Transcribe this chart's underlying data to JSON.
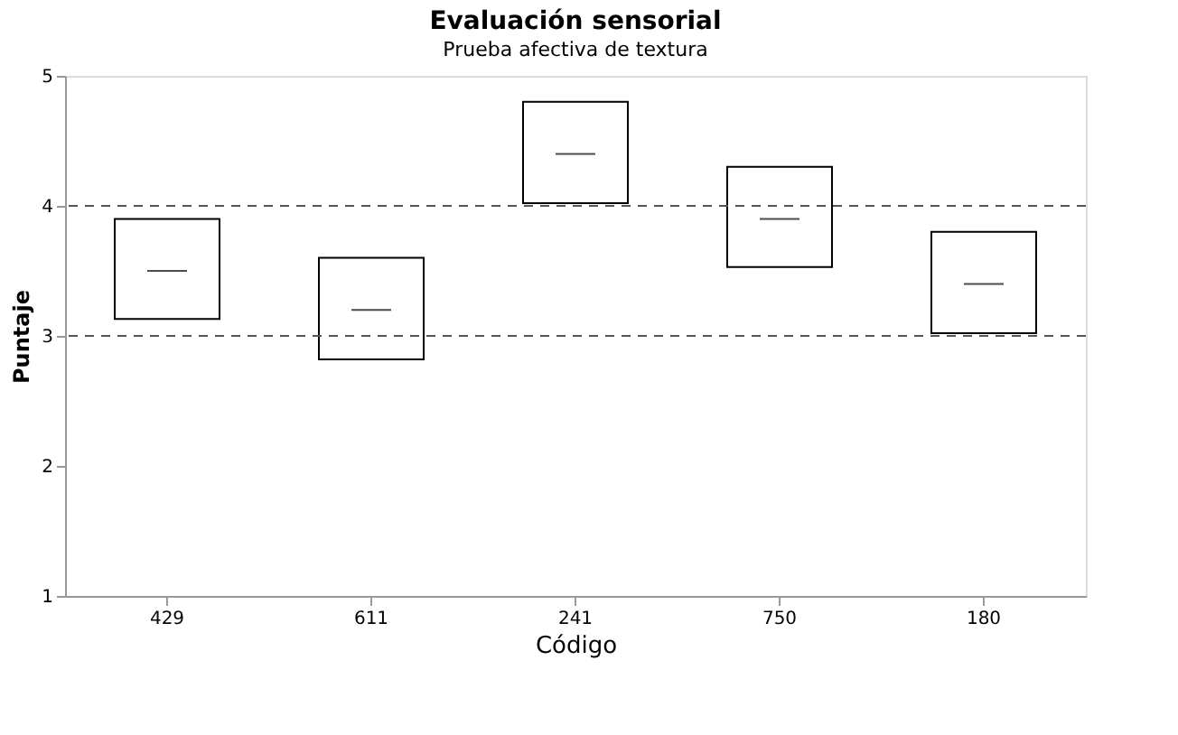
{
  "chart_data": {
    "type": "box",
    "title": "Evaluación sensorial",
    "subtitle": "Prueba afectiva de textura",
    "xlabel": "Código",
    "ylabel": "Puntaje",
    "categories": [
      "429",
      "611",
      "241",
      "750",
      "180"
    ],
    "boxes": [
      {
        "low": 3.13,
        "q1": 3.13,
        "median": 3.5,
        "q3": 3.9,
        "high": 3.9
      },
      {
        "low": 2.82,
        "q1": 2.82,
        "median": 3.2,
        "q3": 3.6,
        "high": 3.6
      },
      {
        "low": 4.02,
        "q1": 4.02,
        "median": 4.4,
        "q3": 4.8,
        "high": 4.8
      },
      {
        "low": 3.53,
        "q1": 3.53,
        "median": 3.9,
        "q3": 4.3,
        "high": 4.3
      },
      {
        "low": 3.02,
        "q1": 3.02,
        "median": 3.4,
        "q3": 3.8,
        "high": 3.8
      }
    ],
    "ylim": [
      1,
      5
    ],
    "yticks": [
      1,
      2,
      3,
      4,
      5
    ],
    "grid": false,
    "ref_lines": [
      {
        "axis": "y",
        "value": 3,
        "color": "#555555",
        "line_style": "dashed"
      },
      {
        "axis": "y",
        "value": 4,
        "color": "#555555",
        "line_style": "dashed"
      }
    ]
  }
}
